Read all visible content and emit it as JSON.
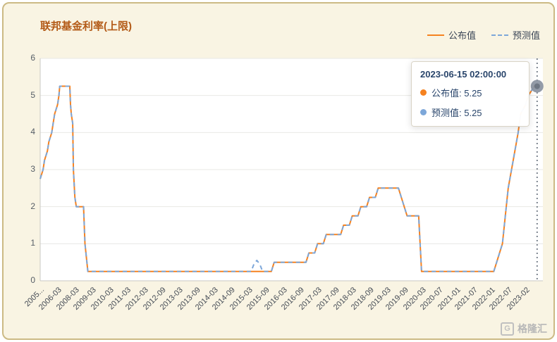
{
  "title": "联邦基金利率(上限)",
  "legend": {
    "published": "公布值",
    "forecast": "预测值"
  },
  "tooltip": {
    "timestamp": "2023-06-15 02:00:00",
    "rows": [
      {
        "text": "公布值: 5.25",
        "value": 5.25
      },
      {
        "text": "预测值: 5.25",
        "value": 5.25
      }
    ]
  },
  "watermark": {
    "logo_letter": "G",
    "text": "格隆汇"
  },
  "colors": {
    "published": "#f58220",
    "forecast": "#7da7d9",
    "title": "#b35a17",
    "card_bg": "#f9f4e3",
    "frame_border": "#ccba84",
    "tooltip_text": "#29456b",
    "axis_pointer": "#5a6472",
    "highlight_dot": "#8d96a3"
  },
  "chart_data": {
    "type": "line",
    "title": "联邦基金利率(上限)",
    "xlabel": "",
    "ylabel": "",
    "ylim": [
      0,
      6
    ],
    "yticks": [
      0,
      1,
      2,
      3,
      4,
      5,
      6
    ],
    "grid": true,
    "legend_position": "top-right",
    "x_labels": [
      {
        "text": "2005...",
        "date": "2005-03"
      },
      {
        "text": "2006-03",
        "date": "2006-03"
      },
      {
        "text": "2008-03",
        "date": "2008-03"
      },
      {
        "text": "2009-03",
        "date": "2009-03"
      },
      {
        "text": "2010-03",
        "date": "2010-03"
      },
      {
        "text": "2011-03",
        "date": "2011-03"
      },
      {
        "text": "2012-03",
        "date": "2012-03"
      },
      {
        "text": "2012-09",
        "date": "2012-09"
      },
      {
        "text": "2013-03",
        "date": "2013-03"
      },
      {
        "text": "2013-09",
        "date": "2013-09"
      },
      {
        "text": "2014-03",
        "date": "2014-03"
      },
      {
        "text": "2014-09",
        "date": "2014-09"
      },
      {
        "text": "2015-03",
        "date": "2015-03"
      },
      {
        "text": "2015-09",
        "date": "2015-09"
      },
      {
        "text": "2016-03",
        "date": "2016-03"
      },
      {
        "text": "2016-09",
        "date": "2016-09"
      },
      {
        "text": "2017-03",
        "date": "2017-03"
      },
      {
        "text": "2017-09",
        "date": "2017-09"
      },
      {
        "text": "2018-03",
        "date": "2018-03"
      },
      {
        "text": "2018-09",
        "date": "2018-09"
      },
      {
        "text": "2019-03",
        "date": "2019-03"
      },
      {
        "text": "2019-09",
        "date": "2019-09"
      },
      {
        "text": "2020-03",
        "date": "2020-03"
      },
      {
        "text": "2020-07",
        "date": "2020-07"
      },
      {
        "text": "2021-01",
        "date": "2021-01"
      },
      {
        "text": "2021-07",
        "date": "2021-07"
      },
      {
        "text": "2022-01",
        "date": "2022-01"
      },
      {
        "text": "2022-07",
        "date": "2022-07"
      },
      {
        "text": "2023-02",
        "date": "2023-02"
      }
    ],
    "series": [
      {
        "name": "公布值",
        "style": "solid",
        "color": "#f58220",
        "points": [
          [
            "2005-03",
            2.75
          ],
          [
            "2005-05",
            3.0
          ],
          [
            "2005-06",
            3.25
          ],
          [
            "2005-08",
            3.5
          ],
          [
            "2005-09",
            3.75
          ],
          [
            "2005-11",
            4.0
          ],
          [
            "2005-12",
            4.25
          ],
          [
            "2006-01",
            4.5
          ],
          [
            "2006-03",
            4.75
          ],
          [
            "2006-05",
            5.0
          ],
          [
            "2006-06",
            5.25
          ],
          [
            "2007-08",
            5.25
          ],
          [
            "2007-09",
            4.75
          ],
          [
            "2007-10",
            4.5
          ],
          [
            "2007-12",
            4.25
          ],
          [
            "2008-01",
            3.0
          ],
          [
            "2008-03",
            2.25
          ],
          [
            "2008-04",
            2.0
          ],
          [
            "2008-09",
            2.0
          ],
          [
            "2008-10",
            1.0
          ],
          [
            "2008-12",
            0.25
          ],
          [
            "2015-11",
            0.25
          ],
          [
            "2015-12",
            0.5
          ],
          [
            "2016-11",
            0.5
          ],
          [
            "2016-12",
            0.75
          ],
          [
            "2017-02",
            0.75
          ],
          [
            "2017-03",
            1.0
          ],
          [
            "2017-05",
            1.0
          ],
          [
            "2017-06",
            1.25
          ],
          [
            "2017-11",
            1.25
          ],
          [
            "2017-12",
            1.5
          ],
          [
            "2018-02",
            1.5
          ],
          [
            "2018-03",
            1.75
          ],
          [
            "2018-05",
            1.75
          ],
          [
            "2018-06",
            2.0
          ],
          [
            "2018-08",
            2.0
          ],
          [
            "2018-09",
            2.25
          ],
          [
            "2018-11",
            2.25
          ],
          [
            "2018-12",
            2.5
          ],
          [
            "2019-07",
            2.5
          ],
          [
            "2019-08",
            2.25
          ],
          [
            "2019-09",
            2.0
          ],
          [
            "2019-10",
            1.75
          ],
          [
            "2020-02",
            1.75
          ],
          [
            "2020-03",
            0.25
          ],
          [
            "2022-02",
            0.25
          ],
          [
            "2022-03",
            0.5
          ],
          [
            "2022-05",
            1.0
          ],
          [
            "2022-06",
            1.75
          ],
          [
            "2022-07",
            2.5
          ],
          [
            "2022-09",
            3.25
          ],
          [
            "2022-11",
            4.0
          ],
          [
            "2022-12",
            4.5
          ],
          [
            "2023-02",
            4.75
          ],
          [
            "2023-03",
            5.0
          ],
          [
            "2023-05",
            5.25
          ],
          [
            "2023-06",
            5.25
          ]
        ]
      },
      {
        "name": "预测值",
        "style": "dashed",
        "color": "#7da7d9",
        "points": [
          [
            "2005-03",
            2.75
          ],
          [
            "2005-05",
            3.0
          ],
          [
            "2005-06",
            3.25
          ],
          [
            "2005-08",
            3.5
          ],
          [
            "2005-09",
            3.75
          ],
          [
            "2005-11",
            4.0
          ],
          [
            "2005-12",
            4.25
          ],
          [
            "2006-01",
            4.5
          ],
          [
            "2006-03",
            4.75
          ],
          [
            "2006-05",
            5.0
          ],
          [
            "2006-06",
            5.25
          ],
          [
            "2007-08",
            5.25
          ],
          [
            "2007-09",
            4.75
          ],
          [
            "2007-10",
            4.5
          ],
          [
            "2007-12",
            4.25
          ],
          [
            "2008-01",
            3.0
          ],
          [
            "2008-03",
            2.25
          ],
          [
            "2008-04",
            2.0
          ],
          [
            "2008-09",
            2.0
          ],
          [
            "2008-10",
            1.0
          ],
          [
            "2008-12",
            0.25
          ],
          [
            "2015-04",
            0.25
          ],
          [
            "2015-05",
            0.45
          ],
          [
            "2015-06",
            0.55
          ],
          [
            "2015-07",
            0.45
          ],
          [
            "2015-08",
            0.25
          ],
          [
            "2015-11",
            0.25
          ],
          [
            "2015-12",
            0.5
          ],
          [
            "2016-11",
            0.5
          ],
          [
            "2016-12",
            0.75
          ],
          [
            "2017-02",
            0.75
          ],
          [
            "2017-03",
            1.0
          ],
          [
            "2017-05",
            1.0
          ],
          [
            "2017-06",
            1.25
          ],
          [
            "2017-11",
            1.25
          ],
          [
            "2017-12",
            1.5
          ],
          [
            "2018-02",
            1.5
          ],
          [
            "2018-03",
            1.75
          ],
          [
            "2018-05",
            1.75
          ],
          [
            "2018-06",
            2.0
          ],
          [
            "2018-08",
            2.0
          ],
          [
            "2018-09",
            2.25
          ],
          [
            "2018-11",
            2.25
          ],
          [
            "2018-12",
            2.5
          ],
          [
            "2019-07",
            2.5
          ],
          [
            "2019-08",
            2.25
          ],
          [
            "2019-09",
            2.0
          ],
          [
            "2019-10",
            1.75
          ],
          [
            "2020-02",
            1.75
          ],
          [
            "2020-03",
            0.25
          ],
          [
            "2022-02",
            0.25
          ],
          [
            "2022-03",
            0.5
          ],
          [
            "2022-05",
            1.0
          ],
          [
            "2022-06",
            1.75
          ],
          [
            "2022-07",
            2.5
          ],
          [
            "2022-09",
            3.25
          ],
          [
            "2022-11",
            4.0
          ],
          [
            "2022-12",
            4.5
          ],
          [
            "2023-02",
            4.75
          ],
          [
            "2023-03",
            5.0
          ],
          [
            "2023-05",
            5.25
          ],
          [
            "2023-06",
            5.25
          ]
        ]
      }
    ],
    "highlight": {
      "date": "2023-06",
      "value": 5.25
    }
  }
}
